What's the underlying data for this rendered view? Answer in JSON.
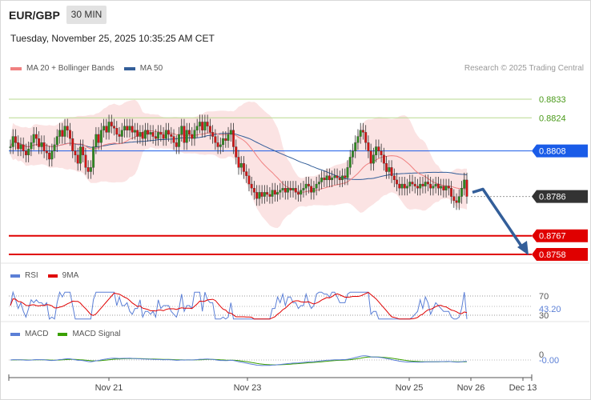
{
  "header": {
    "pair": "EUR/GBP",
    "timeframe": "30 MIN",
    "datetime": "Tuesday, November 25, 2025 10:35:25 AM CET",
    "credit": "Research © 2025 Trading Central"
  },
  "legend": {
    "ma20": "MA 20 + Bollinger Bands",
    "ma50": "MA 50",
    "ma20_color": "#f08080",
    "ma50_color": "#335e99"
  },
  "rsi_legend": {
    "rsi": "RSI",
    "ma": "9MA",
    "rsi_color": "#5b7fd6",
    "ma_color": "#e00000"
  },
  "macd_legend": {
    "macd": "MACD",
    "signal": "MACD Signal",
    "macd_color": "#5b7fd6",
    "signal_color": "#3aa000"
  },
  "chart_data": {
    "type": "candlestick",
    "x_ticks": [
      "Nov 21",
      "Nov 23",
      "Nov 25",
      "Nov 26",
      "Dec 13"
    ],
    "ylim": [
      0.8745,
      0.8842
    ],
    "price_levels": [
      {
        "label": "0.8833",
        "value": 0.8833,
        "style": "resistance-thin",
        "color": "#4a9a1a"
      },
      {
        "label": "0.8824",
        "value": 0.8824,
        "style": "resistance-thin",
        "color": "#4a9a1a"
      },
      {
        "label": "0.8808",
        "value": 0.8808,
        "style": "pivot",
        "color": "#1a5ce8"
      },
      {
        "label": "0.8786",
        "value": 0.8786,
        "style": "last-price",
        "color": "#333333"
      },
      {
        "label": "0.8767",
        "value": 0.8767,
        "style": "support",
        "color": "#e00000"
      },
      {
        "label": "0.8758",
        "value": 0.8758,
        "style": "support",
        "color": "#e00000"
      }
    ],
    "projection": {
      "from": 0.8788,
      "to": 0.8758,
      "color": "#335e99"
    },
    "candles": [
      0.881,
      0.8815,
      0.8812,
      0.8809,
      0.8811,
      0.8808,
      0.8806,
      0.8809,
      0.8812,
      0.8816,
      0.8814,
      0.881,
      0.8812,
      0.8808,
      0.8807,
      0.8804,
      0.8808,
      0.8811,
      0.8815,
      0.8818,
      0.8815,
      0.882,
      0.8818,
      0.8814,
      0.8808,
      0.8806,
      0.8802,
      0.881,
      0.8806,
      0.88,
      0.8798,
      0.88,
      0.881,
      0.8816,
      0.8812,
      0.8818,
      0.882,
      0.8817,
      0.8822,
      0.882,
      0.8819,
      0.8816,
      0.8815,
      0.8818,
      0.882,
      0.8818,
      0.882,
      0.8817,
      0.8818,
      0.8815,
      0.8817,
      0.8814,
      0.8818,
      0.8816,
      0.8817,
      0.8815,
      0.8814,
      0.8817,
      0.8816,
      0.8814,
      0.8818,
      0.8816,
      0.8815,
      0.8812,
      0.881,
      0.8816,
      0.882,
      0.8812,
      0.8818,
      0.8816,
      0.8814,
      0.8818,
      0.882,
      0.8822,
      0.8818,
      0.8822,
      0.882,
      0.8817,
      0.8815,
      0.8812,
      0.881,
      0.8811,
      0.8814,
      0.8813,
      0.8816,
      0.8818,
      0.881,
      0.8805,
      0.88,
      0.8802,
      0.8798,
      0.8796,
      0.8792,
      0.879,
      0.8788,
      0.8785,
      0.8788,
      0.8786,
      0.8788,
      0.8787,
      0.8786,
      0.8789,
      0.8787,
      0.8788,
      0.8789,
      0.879,
      0.8788,
      0.879,
      0.8789,
      0.879,
      0.8788,
      0.8787,
      0.8789,
      0.879,
      0.8792,
      0.8791,
      0.8788,
      0.879,
      0.8792,
      0.8793,
      0.8795,
      0.8794,
      0.8796,
      0.8794,
      0.8795,
      0.8796,
      0.8795,
      0.8794,
      0.8796,
      0.8795,
      0.88,
      0.8805,
      0.8808,
      0.8812,
      0.8815,
      0.8818,
      0.8817,
      0.8812,
      0.8808,
      0.8802,
      0.8806,
      0.881,
      0.8808,
      0.8806,
      0.8802,
      0.8798,
      0.88,
      0.8796,
      0.8794,
      0.8792,
      0.879,
      0.8792,
      0.879,
      0.8791,
      0.8793,
      0.8792,
      0.8791,
      0.879,
      0.8792,
      0.8791,
      0.8793,
      0.8792,
      0.879,
      0.8791,
      0.8792,
      0.879,
      0.8791,
      0.8789,
      0.8791,
      0.879,
      0.8786,
      0.8784,
      0.8783,
      0.8786,
      0.879,
      0.8794,
      0.8786
    ]
  },
  "rsi": {
    "levels": [
      {
        "label": "70",
        "value": 70
      },
      {
        "label": "30",
        "value": 30
      }
    ],
    "current_label": "43.20",
    "current": 43.2
  },
  "macd": {
    "zero_label": "0",
    "current_label": "-0.00",
    "current": -0.0
  }
}
